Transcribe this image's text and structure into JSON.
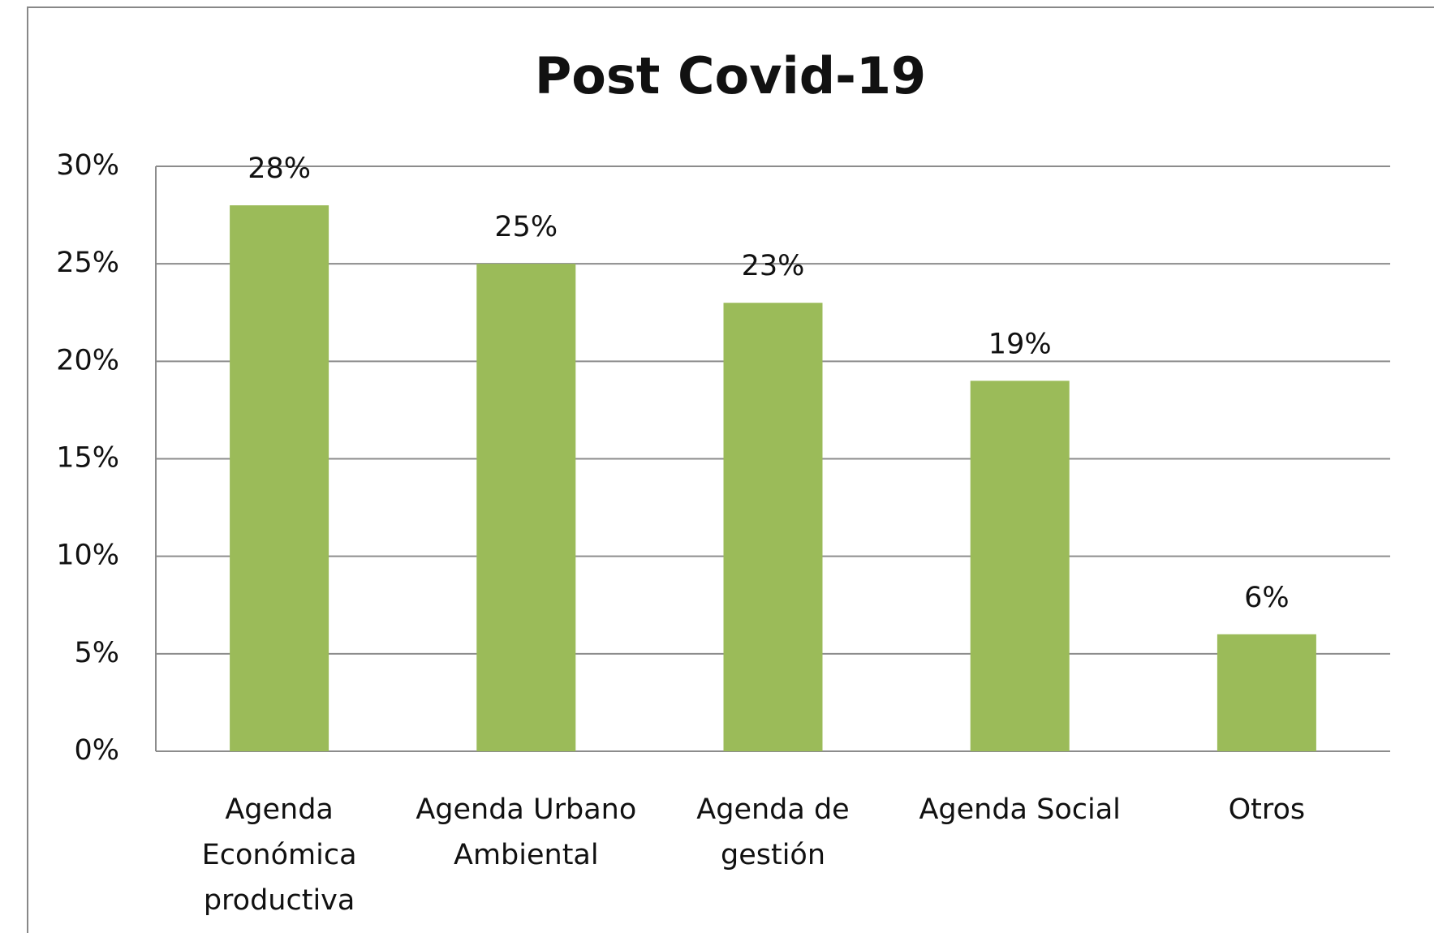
{
  "chart_data": {
    "type": "bar",
    "title": "Post Covid-19",
    "categories": [
      "Agenda Económica productiva",
      "Agenda Urbano Ambiental",
      "Agenda de gestión",
      "Agenda Social",
      "Otros"
    ],
    "values": [
      28,
      25,
      23,
      19,
      6
    ],
    "value_labels": [
      "28%",
      "25%",
      "23%",
      "19%",
      "6%"
    ],
    "color": "#9bbb59",
    "ylim": [
      0,
      30
    ],
    "yticks": [
      {
        "value": 0,
        "label": "0%"
      },
      {
        "value": 5,
        "label": "5%"
      },
      {
        "value": 10,
        "label": "10%"
      },
      {
        "value": 15,
        "label": "15%"
      },
      {
        "value": 20,
        "label": "20%"
      },
      {
        "value": 25,
        "label": "25%"
      },
      {
        "value": 30,
        "label": "30%"
      }
    ],
    "grid": true
  }
}
